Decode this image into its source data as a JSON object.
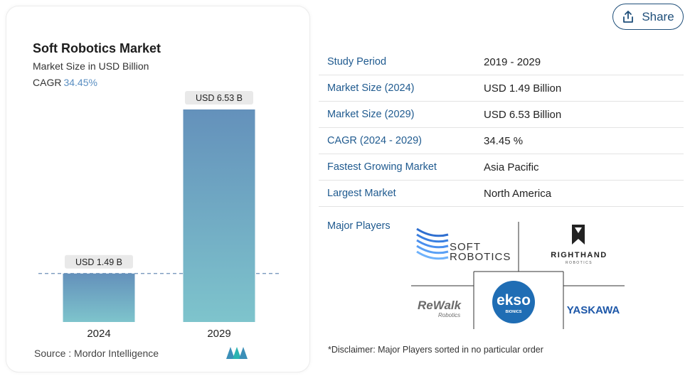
{
  "chart_data": {
    "type": "bar",
    "title": "Soft Robotics Market",
    "subtitle": "Market Size in USD Billion",
    "cagr_label": "CAGR",
    "cagr_value": "34.45%",
    "categories": [
      "2024",
      "2029"
    ],
    "values": [
      1.49,
      6.53
    ],
    "data_labels": [
      "USD 1.49 B",
      "USD 6.53 B"
    ],
    "ylim": [
      0,
      6.53
    ],
    "colors": {
      "bar_top": "#6491bb",
      "bar_bottom": "#7ec4cc",
      "ref_line": "#6b8fb8",
      "label_bg": "#e9e9e9"
    },
    "source": "Source : Mordor Intelligence"
  },
  "header": {
    "share_label": "Share"
  },
  "stats": [
    {
      "label": "Study Period",
      "value": "2019 - 2029"
    },
    {
      "label": "Market Size (2024)",
      "value": "USD 1.49 Billion"
    },
    {
      "label": "Market Size (2029)",
      "value": "USD 6.53 Billion"
    },
    {
      "label": "CAGR (2024 - 2029)",
      "value": "34.45 %"
    },
    {
      "label": "Fastest Growing Market",
      "value": "Asia Pacific"
    },
    {
      "label": "Largest Market",
      "value": "North America"
    }
  ],
  "players": {
    "title": "Major Players",
    "soft_robotics": {
      "line1": "SOFT",
      "line2": "ROBOTICS"
    },
    "righthand": {
      "line1": "RIGHTHAND",
      "line2": "ROBOTICS"
    },
    "rewalk": {
      "line1": "ReWalk",
      "line2": "Robotics"
    },
    "ekso": {
      "line1": "ekso",
      "line2": "BIONICS"
    },
    "yaskawa": {
      "line1": "YASKAWA"
    },
    "disclaimer": "*Disclaimer: Major Players sorted in no particular order"
  },
  "icons": {
    "share": "share-upload-icon",
    "brand": "mordor-logo-icon"
  }
}
